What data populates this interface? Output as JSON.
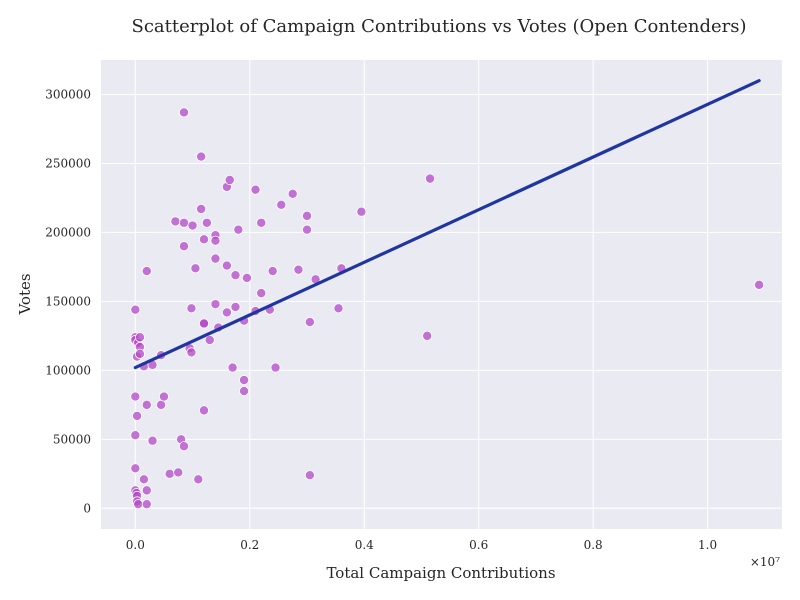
{
  "chart_data": {
    "type": "scatter",
    "title": "Scatterplot of Campaign Contributions vs Votes (Open Contenders)",
    "xlabel": "Total Campaign Contributions",
    "ylabel": "Votes",
    "x_offset_label": "×10⁷",
    "xlim": [
      -600000,
      11300000
    ],
    "ylim": [
      -15000,
      325000
    ],
    "x_ticks": [
      0,
      2000000,
      4000000,
      6000000,
      8000000,
      10000000
    ],
    "x_tick_labels": [
      "0.0",
      "0.2",
      "0.4",
      "0.6",
      "0.8",
      "1.0"
    ],
    "y_ticks": [
      0,
      50000,
      100000,
      150000,
      200000,
      250000,
      300000
    ],
    "y_tick_labels": [
      "0",
      "50000",
      "100000",
      "150000",
      "200000",
      "250000",
      "300000"
    ],
    "grid": true,
    "point_color": "#b347c8",
    "line_color": "#1f35a0",
    "background_color": "#eaeaf2",
    "regression_line": {
      "x": [
        0,
        10900000
      ],
      "y": [
        102000,
        310000
      ]
    },
    "points": [
      [
        0,
        144000
      ],
      [
        0,
        124000
      ],
      [
        0,
        122000
      ],
      [
        50000,
        120000
      ],
      [
        80000,
        117000
      ],
      [
        80000,
        124000
      ],
      [
        30000,
        110000
      ],
      [
        80000,
        112000
      ],
      [
        150000,
        103000
      ],
      [
        300000,
        104000
      ],
      [
        450000,
        111000
      ],
      [
        0,
        81000
      ],
      [
        30000,
        67000
      ],
      [
        0,
        53000
      ],
      [
        0,
        29000
      ],
      [
        0,
        13000
      ],
      [
        20000,
        11000
      ],
      [
        30000,
        9000
      ],
      [
        30000,
        5000
      ],
      [
        50000,
        3000
      ],
      [
        200000,
        3000
      ],
      [
        200000,
        13000
      ],
      [
        150000,
        21000
      ],
      [
        200000,
        75000
      ],
      [
        200000,
        172000
      ],
      [
        300000,
        49000
      ],
      [
        450000,
        75000
      ],
      [
        500000,
        81000
      ],
      [
        600000,
        25000
      ],
      [
        750000,
        26000
      ],
      [
        800000,
        50000
      ],
      [
        850000,
        45000
      ],
      [
        700000,
        208000
      ],
      [
        850000,
        207000
      ],
      [
        850000,
        190000
      ],
      [
        850000,
        287000
      ],
      [
        950000,
        116000
      ],
      [
        980000,
        113000
      ],
      [
        980000,
        145000
      ],
      [
        1000000,
        205000
      ],
      [
        1050000,
        174000
      ],
      [
        1100000,
        21000
      ],
      [
        1150000,
        217000
      ],
      [
        1150000,
        255000
      ],
      [
        1200000,
        195000
      ],
      [
        1200000,
        134000
      ],
      [
        1200000,
        134000
      ],
      [
        1200000,
        71000
      ],
      [
        1250000,
        207000
      ],
      [
        1300000,
        122000
      ],
      [
        1400000,
        198000
      ],
      [
        1400000,
        194000
      ],
      [
        1400000,
        181000
      ],
      [
        1400000,
        148000
      ],
      [
        1450000,
        131000
      ],
      [
        1600000,
        233000
      ],
      [
        1600000,
        176000
      ],
      [
        1600000,
        142000
      ],
      [
        1650000,
        238000
      ],
      [
        1700000,
        102000
      ],
      [
        1750000,
        169000
      ],
      [
        1750000,
        146000
      ],
      [
        1800000,
        202000
      ],
      [
        1900000,
        136000
      ],
      [
        1900000,
        93000
      ],
      [
        1900000,
        85000
      ],
      [
        1950000,
        167000
      ],
      [
        2100000,
        231000
      ],
      [
        2100000,
        143000
      ],
      [
        2200000,
        207000
      ],
      [
        2200000,
        156000
      ],
      [
        2350000,
        144000
      ],
      [
        2400000,
        172000
      ],
      [
        2450000,
        102000
      ],
      [
        2550000,
        220000
      ],
      [
        2750000,
        228000
      ],
      [
        2850000,
        173000
      ],
      [
        3000000,
        202000
      ],
      [
        3000000,
        212000
      ],
      [
        3050000,
        135000
      ],
      [
        3050000,
        24000
      ],
      [
        3150000,
        166000
      ],
      [
        3550000,
        145000
      ],
      [
        3600000,
        174000
      ],
      [
        3950000,
        215000
      ],
      [
        5100000,
        125000
      ],
      [
        5150000,
        239000
      ],
      [
        10900000,
        162000
      ]
    ]
  }
}
